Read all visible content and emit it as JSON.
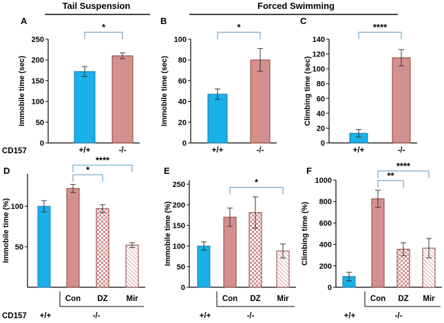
{
  "headers": {
    "tail": "Tail Suspension",
    "forced": "Forced Swimming"
  },
  "row_labels": {
    "cd157_top": "CD157",
    "cd157_bottom": "CD157"
  },
  "colors": {
    "wt": "#1ab0e8",
    "ko": "#d4908e",
    "ko_stroke": "#8a3f3c",
    "bracket": "#6fa3c8"
  },
  "chart_data": [
    {
      "panel": "A",
      "type": "bar",
      "ylabel": "Immobile time (sec)",
      "ylim": [
        0,
        250
      ],
      "yticks": [
        0,
        50,
        100,
        150,
        200,
        250
      ],
      "categories": [
        "+/+",
        "-/-"
      ],
      "values": [
        172,
        210
      ],
      "errors": [
        12,
        7
      ],
      "patterns": [
        "solid-blue",
        "solid-red"
      ],
      "significance": [
        {
          "from": 0,
          "to": 1,
          "label": "*"
        }
      ]
    },
    {
      "panel": "B",
      "type": "bar",
      "ylabel": "Immobile time (sec)",
      "ylim": [
        0,
        100
      ],
      "yticks": [
        0,
        20,
        40,
        60,
        80,
        100
      ],
      "categories": [
        "+/+",
        "-/-"
      ],
      "values": [
        47,
        80
      ],
      "errors": [
        5,
        11
      ],
      "patterns": [
        "solid-blue",
        "solid-red"
      ],
      "significance": [
        {
          "from": 0,
          "to": 1,
          "label": "*"
        }
      ]
    },
    {
      "panel": "C",
      "type": "bar",
      "ylabel": "Climbing time (sec)",
      "ylim": [
        0,
        140
      ],
      "yticks": [
        0,
        20,
        40,
        60,
        80,
        100,
        120,
        140
      ],
      "categories": [
        "+/+",
        "-/-"
      ],
      "values": [
        13,
        115
      ],
      "errors": [
        5,
        11
      ],
      "patterns": [
        "solid-blue",
        "solid-red"
      ],
      "significance": [
        {
          "from": 0,
          "to": 1,
          "label": "****"
        }
      ]
    },
    {
      "panel": "D",
      "type": "bar",
      "ylabel": "Immobile time (%)",
      "ylim": [
        0,
        140
      ],
      "yticks": [
        50,
        100
      ],
      "categories": [
        "",
        "Con",
        "DZ",
        "Mir"
      ],
      "genotypes": [
        "+/+",
        "-/-"
      ],
      "values": [
        100,
        122,
        97,
        52
      ],
      "errors": [
        7,
        5,
        5,
        3
      ],
      "patterns": [
        "solid-blue",
        "solid-red",
        "checker",
        "hatch"
      ],
      "significance": [
        {
          "from": 1,
          "to": 2,
          "label": "*"
        },
        {
          "from": 1,
          "to": 3,
          "label": "****"
        }
      ]
    },
    {
      "panel": "E",
      "type": "bar",
      "ylabel": "Immobile time (%)",
      "ylim": [
        0,
        260
      ],
      "yticks": [
        0,
        50,
        100,
        150,
        200,
        250
      ],
      "categories": [
        "",
        "Con",
        "DZ",
        "Mir"
      ],
      "genotypes": [
        "+/+",
        "-/-"
      ],
      "values": [
        100,
        170,
        181,
        88
      ],
      "errors": [
        10,
        22,
        38,
        17
      ],
      "patterns": [
        "solid-blue",
        "solid-red",
        "checker",
        "hatch"
      ],
      "significance": [
        {
          "from": 1,
          "to": 3,
          "label": "*"
        }
      ]
    },
    {
      "panel": "F",
      "type": "bar",
      "ylabel": "Climbing time (%)",
      "ylim": [
        0,
        1000
      ],
      "yticks": [
        0,
        200,
        400,
        600,
        800,
        1000
      ],
      "categories": [
        "",
        "Con",
        "DZ",
        "Mir"
      ],
      "genotypes": [
        "+/+",
        "-/-"
      ],
      "values": [
        100,
        825,
        355,
        365
      ],
      "errors": [
        40,
        80,
        60,
        90
      ],
      "patterns": [
        "solid-blue",
        "solid-red",
        "checker",
        "hatch"
      ],
      "significance": [
        {
          "from": 1,
          "to": 2,
          "label": "**"
        },
        {
          "from": 1,
          "to": 3,
          "label": "****"
        }
      ]
    }
  ]
}
